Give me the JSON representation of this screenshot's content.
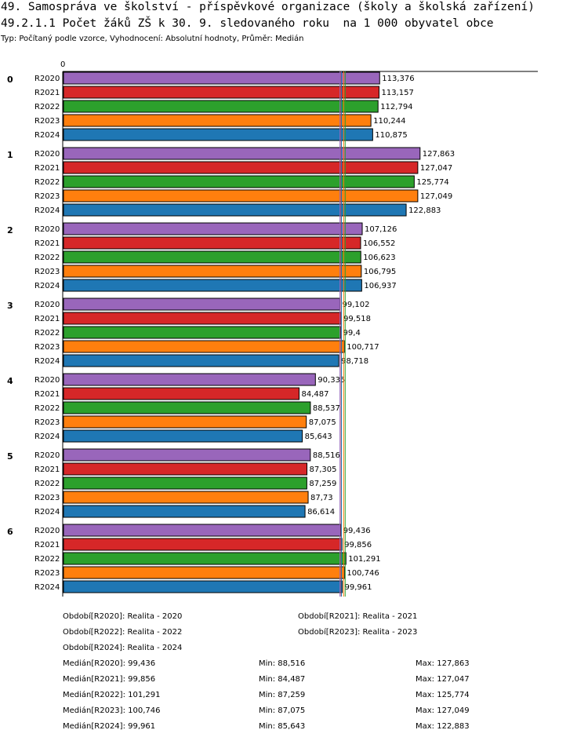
{
  "header": {
    "title_line1": "49. Samospráva ve školství - příspěvkové organizace (školy a školská zařízení)",
    "title_line2": "49.2.1.1 Počet žáků ZŠ k 30. 9. sledovaného roku  na 1 000 obyvatel obce",
    "subtitle": "Typ: Počítaný podle vzorce, Vyhodnocení: Absolutní hodnoty, Průměr: Medián"
  },
  "chart_data": {
    "type": "bar",
    "orientation": "horizontal",
    "x_axis_origin_label": "0",
    "xlim": [
      0,
      132
    ],
    "categories": [
      "0",
      "1",
      "2",
      "3",
      "4",
      "5",
      "6"
    ],
    "series": [
      {
        "name": "R2020",
        "color": "#9966bb",
        "values": [
          113.376,
          127.863,
          107.126,
          99.102,
          90.335,
          88.516,
          99.436
        ],
        "labels": [
          "113,376",
          "127,863",
          "107,126",
          "99,102",
          "90,335",
          "88,516",
          "99,436"
        ]
      },
      {
        "name": "R2021",
        "color": "#d62728",
        "values": [
          113.157,
          127.047,
          106.552,
          99.518,
          84.487,
          87.305,
          99.856
        ],
        "labels": [
          "113,157",
          "127,047",
          "106,552",
          "99,518",
          "84,487",
          "87,305",
          "99,856"
        ]
      },
      {
        "name": "R2022",
        "color": "#2ca02c",
        "values": [
          112.794,
          125.774,
          106.623,
          99.4,
          88.537,
          87.259,
          101.291
        ],
        "labels": [
          "112,794",
          "125,774",
          "106,623",
          "99,4",
          "88,537",
          "87,259",
          "101,291"
        ]
      },
      {
        "name": "R2023",
        "color": "#ff7f0e",
        "values": [
          110.244,
          127.049,
          106.795,
          100.717,
          87.075,
          87.73,
          100.746
        ],
        "labels": [
          "110,244",
          "127,049",
          "106,795",
          "100,717",
          "87,075",
          "87,73",
          "100,746"
        ]
      },
      {
        "name": "R2024",
        "color": "#1f77b4",
        "values": [
          110.875,
          122.883,
          106.937,
          98.718,
          85.643,
          86.614,
          99.961
        ],
        "labels": [
          "110,875",
          "122,883",
          "106,937",
          "98,718",
          "85,643",
          "86,614",
          "99,961"
        ]
      }
    ],
    "median_lines": [
      {
        "series": "R2020",
        "value": 99.436
      },
      {
        "series": "R2021",
        "value": 99.856
      },
      {
        "series": "R2022",
        "value": 101.291
      },
      {
        "series": "R2023",
        "value": 100.746
      },
      {
        "series": "R2024",
        "value": 99.961
      }
    ]
  },
  "legend": {
    "periods": [
      "Období[R2020]: Realita - 2020",
      "Období[R2021]: Realita - 2021",
      "Období[R2022]: Realita - 2022",
      "Období[R2023]: Realita - 2023",
      "Období[R2024]: Realita - 2024"
    ],
    "stats": [
      {
        "median": "Medián[R2020]: 99,436",
        "min": "Min: 88,516",
        "max": "Max: 127,863"
      },
      {
        "median": "Medián[R2021]: 99,856",
        "min": "Min: 84,487",
        "max": "Max: 127,047"
      },
      {
        "median": "Medián[R2022]: 101,291",
        "min": "Min: 87,259",
        "max": "Max: 125,774"
      },
      {
        "median": "Medián[R2023]: 100,746",
        "min": "Min: 87,075",
        "max": "Max: 127,049"
      },
      {
        "median": "Medián[R2024]: 99,961",
        "min": "Min: 85,643",
        "max": "Max: 122,883"
      }
    ]
  }
}
